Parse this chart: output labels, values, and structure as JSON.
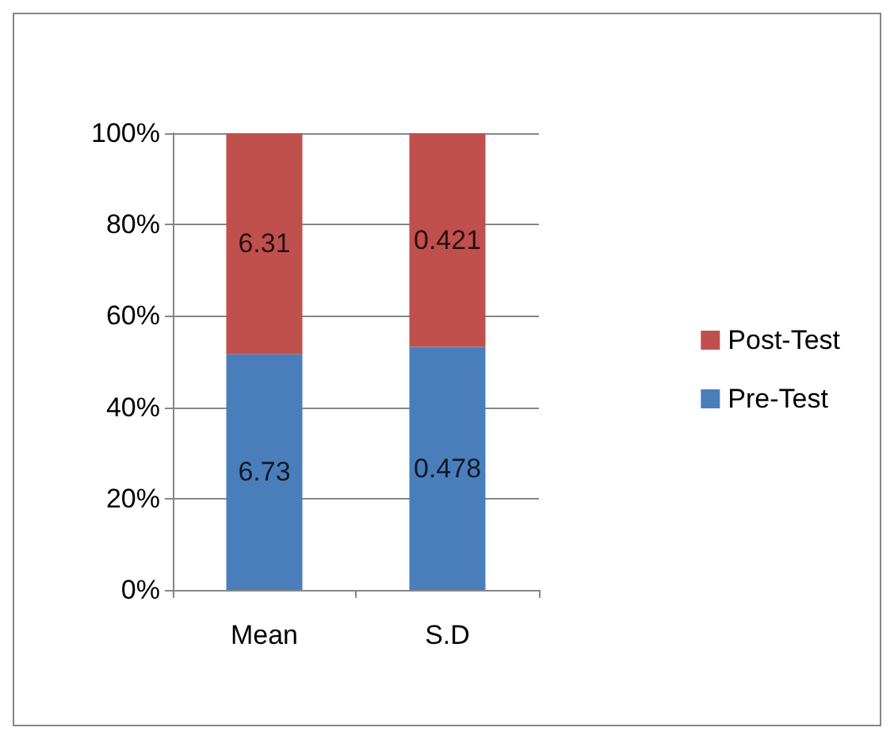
{
  "chart_data": {
    "type": "bar",
    "stacked": true,
    "categories": [
      "Mean",
      "S.D"
    ],
    "series": [
      {
        "name": "Pre-Test",
        "color": "#4a7ebb",
        "values": [
          51.6,
          53.2
        ]
      },
      {
        "name": "Post-Test",
        "color": "#c0504d",
        "values": [
          48.4,
          46.8
        ]
      }
    ],
    "annotations": [
      "6.73",
      "0.478",
      "6.31",
      "0.421"
    ],
    "ylim": [
      0,
      100
    ],
    "yticks": [
      {
        "value": 0,
        "label": "0%"
      },
      {
        "value": 20,
        "label": "20%"
      },
      {
        "value": 40,
        "label": "40%"
      },
      {
        "value": 60,
        "label": "60%"
      },
      {
        "value": 80,
        "label": "80%"
      },
      {
        "value": 100,
        "label": "100%"
      }
    ],
    "grid": "y",
    "legend": "right"
  }
}
